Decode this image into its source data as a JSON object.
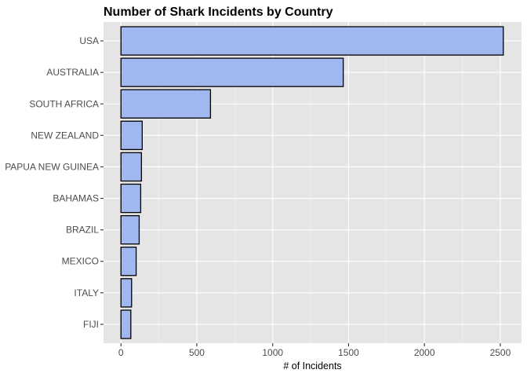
{
  "chart_data": {
    "type": "bar",
    "orientation": "horizontal",
    "title": "Number of Shark Incidents by Country",
    "xlabel": "# of Incidents",
    "ylabel": "",
    "categories": [
      "USA",
      "AUSTRALIA",
      "SOUTH AFRICA",
      "NEW ZEALAND",
      "PAPUA NEW GUINEA",
      "BAHAMAS",
      "BRAZIL",
      "MEXICO",
      "ITALY",
      "FIJI"
    ],
    "values": [
      2520,
      1465,
      590,
      140,
      135,
      130,
      120,
      100,
      70,
      65
    ],
    "xlim": [
      -115,
      2640
    ],
    "xticks": [
      0,
      500,
      1000,
      1500,
      2000,
      2500
    ],
    "xtick_labels": [
      "0",
      "500",
      "1000",
      "1500",
      "2000",
      "2500"
    ],
    "grid": true,
    "colors": {
      "panel": "#e5e5e5",
      "grid_major": "#ffffff",
      "bar_fill": "#a0b8ef",
      "bar_stroke": "#000000"
    }
  }
}
